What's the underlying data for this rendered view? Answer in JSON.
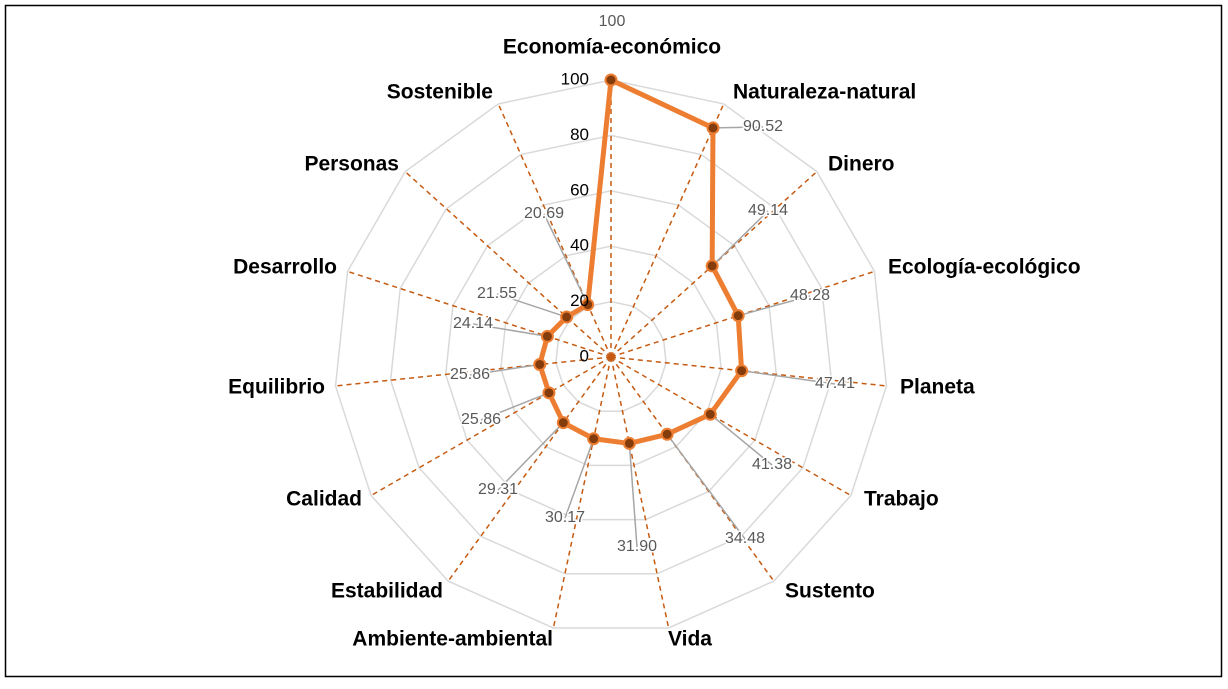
{
  "chart_data": {
    "type": "radar",
    "categories": [
      "Economía-económico",
      "Naturaleza-natural",
      "Dinero",
      "Ecología-ecológico",
      "Planeta",
      "Trabajo",
      "Sustento",
      "Vida",
      "Ambiente-ambiental",
      "Estabilidad",
      "Calidad",
      "Equilibrio",
      "Desarrollo",
      "Personas",
      "Sostenible"
    ],
    "series": [
      {
        "color": "#ed7d31",
        "values": [
          100,
          90.52,
          49.14,
          48.28,
          47.41,
          41.38,
          34.48,
          31.9,
          30.17,
          29.31,
          25.86,
          25.86,
          24.14,
          21.55,
          20.69
        ],
        "value_labels": [
          "100",
          "90.52",
          "49.14",
          "48.28",
          "47.41",
          "41.38",
          "34.48",
          "31.90",
          "30.17",
          "29.31",
          "25.86",
          "25.86",
          "24.14",
          "21.55",
          "20.69"
        ]
      }
    ],
    "rlim": [
      0,
      100
    ],
    "rticks": [
      0,
      20,
      40,
      60,
      80,
      100
    ],
    "grid": true
  }
}
